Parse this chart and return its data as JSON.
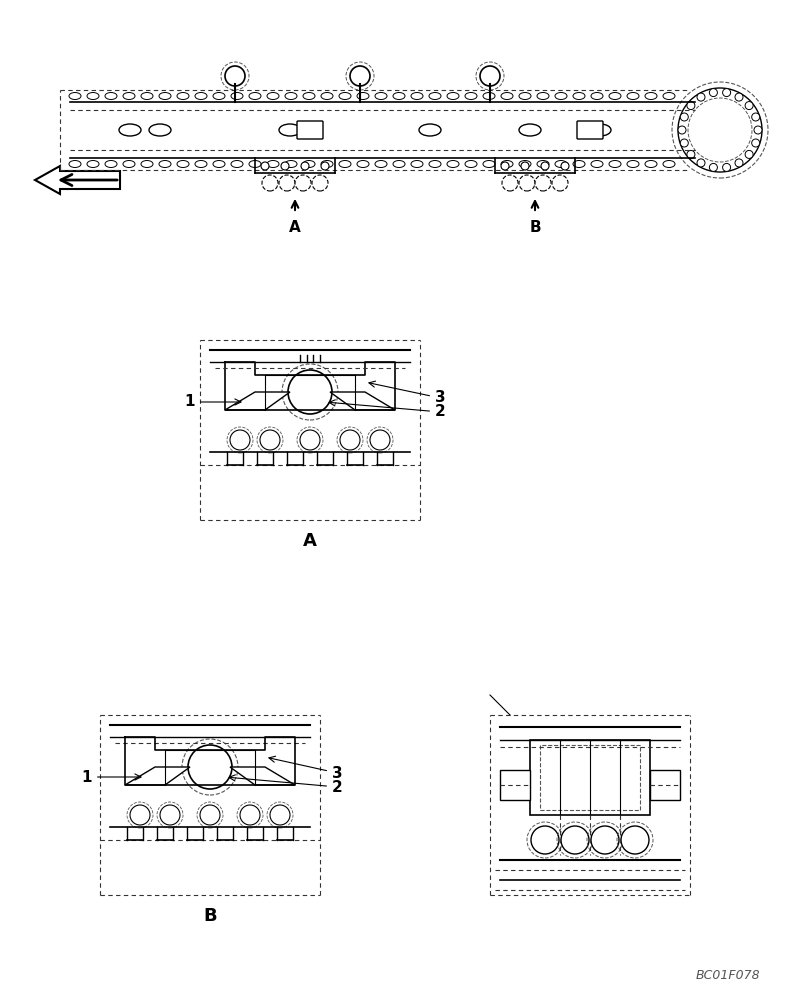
{
  "bg_color": "#ffffff",
  "line_color": "#000000",
  "dashed_color": "#555555",
  "title_code": "BC01F078",
  "label_A": "A",
  "label_B": "B",
  "parts_labels": [
    "1",
    "2",
    "3"
  ],
  "figsize": [
    8.12,
    10.0
  ],
  "dpi": 100
}
